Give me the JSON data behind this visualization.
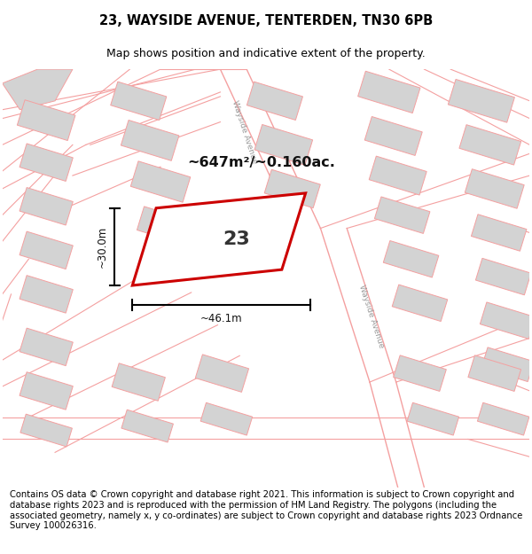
{
  "title": "23, WAYSIDE AVENUE, TENTERDEN, TN30 6PB",
  "subtitle": "Map shows position and indicative extent of the property.",
  "footer": "Contains OS data © Crown copyright and database right 2021. This information is subject to Crown copyright and database rights 2023 and is reproduced with the permission of HM Land Registry. The polygons (including the associated geometry, namely x, y co-ordinates) are subject to Crown copyright and database rights 2023 Ordnance Survey 100026316.",
  "area_label": "~647m²/~0.160ac.",
  "width_label": "~46.1m",
  "height_label": "~30.0m",
  "plot_number": "23",
  "map_bg": "#ffffff",
  "building_fill": "#d3d3d3",
  "road_line_color": "#f4a0a0",
  "plot_line_color": "#cc0000",
  "title_fontsize": 10.5,
  "subtitle_fontsize": 9,
  "footer_fontsize": 7.2
}
